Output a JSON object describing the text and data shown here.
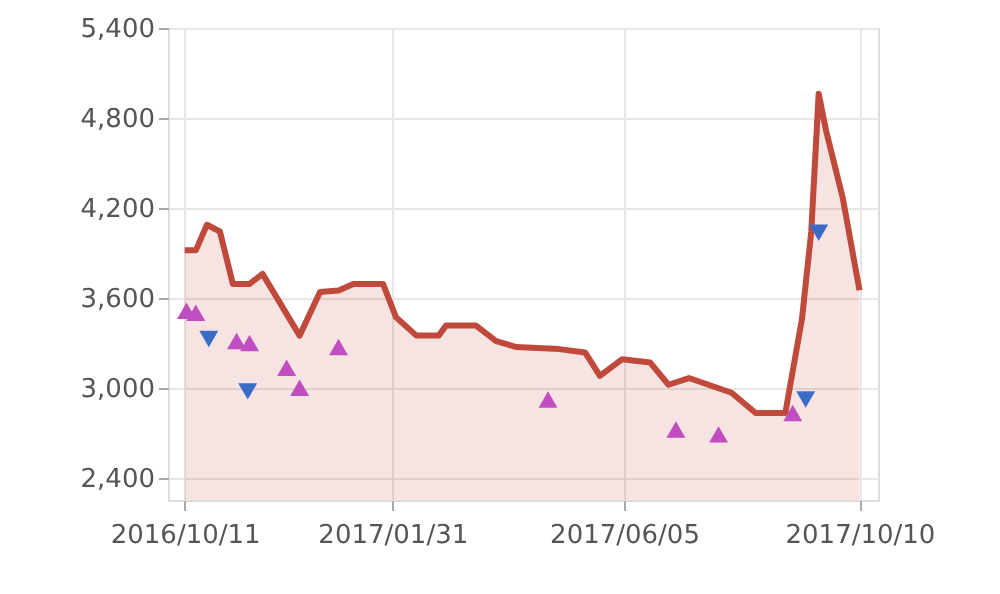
{
  "chart_data": {
    "type": "area",
    "series": [
      {
        "color": "#bf4a3c",
        "x": [
          "2016-10-11",
          "2016-10-17",
          "2016-10-23",
          "2016-10-30",
          "2016-11-06",
          "2016-11-15",
          "2016-11-22",
          "2016-12-12",
          "2016-12-23",
          "2017-01-02",
          "2017-01-10",
          "2017-01-26",
          "2017-02-02",
          "2017-02-13",
          "2017-02-25",
          "2017-03-01",
          "2017-03-17",
          "2017-03-28",
          "2017-04-08",
          "2017-05-01",
          "2017-05-15",
          "2017-05-23",
          "2017-06-04",
          "2017-06-19",
          "2017-06-29",
          "2017-07-10",
          "2017-08-02",
          "2017-08-15",
          "2017-08-31",
          "2017-09-09",
          "2017-09-14",
          "2017-09-18",
          "2017-09-22",
          "2017-10-01",
          "2017-10-10"
        ],
        "values": [
          3916,
          3916,
          4087,
          4042,
          3692,
          3692,
          3759,
          3347,
          3638,
          3648,
          3692,
          3692,
          3469,
          3347,
          3347,
          3415,
          3415,
          3311,
          3271,
          3257,
          3235,
          3079,
          3190,
          3168,
          3019,
          3064,
          2966,
          2831,
          2831,
          3459,
          4042,
          4962,
          4714,
          4266,
          3650
        ]
      },
      {
        "type": "scatter",
        "marker": "triangle",
        "color": "#c04ec0",
        "x": [
          "2016-10-12",
          "2016-10-17",
          "2016-11-08",
          "2016-11-15",
          "2016-12-05",
          "2016-12-12",
          "2017-01-02",
          "2017-04-25",
          "2017-07-03",
          "2017-07-26",
          "2017-09-04"
        ],
        "values": [
          3513,
          3500,
          3311,
          3298,
          3132,
          2999,
          3271,
          2921,
          2720,
          2688,
          2831
        ]
      },
      {
        "type": "scatter",
        "marker": "triangle-down",
        "color": "#3a6cc6",
        "x": [
          "2016-10-24",
          "2016-11-14",
          "2017-09-11",
          "2017-09-18"
        ],
        "values": [
          3325,
          2975,
          2921,
          4033
        ]
      }
    ],
    "xlim": [
      "2016-10-02",
      "2017-10-20"
    ],
    "xticks": [
      {
        "value": "2016-10-11",
        "label": "2016/10/11"
      },
      {
        "value": "2017-01-31",
        "label": "2017/01/31"
      },
      {
        "value": "2017-06-05",
        "label": "2017/06/05"
      },
      {
        "value": "2017-10-10",
        "label": "2017/10/10"
      }
    ],
    "ylim": [
      2250,
      5400
    ],
    "yticks": [
      {
        "value": 2400,
        "label": "2,400"
      },
      {
        "value": 3000,
        "label": "3,000"
      },
      {
        "value": 3600,
        "label": "3,600"
      },
      {
        "value": 4200,
        "label": "4,200"
      },
      {
        "value": 4800,
        "label": "4,800"
      },
      {
        "value": 5400,
        "label": "5,400"
      }
    ],
    "grid": true
  }
}
